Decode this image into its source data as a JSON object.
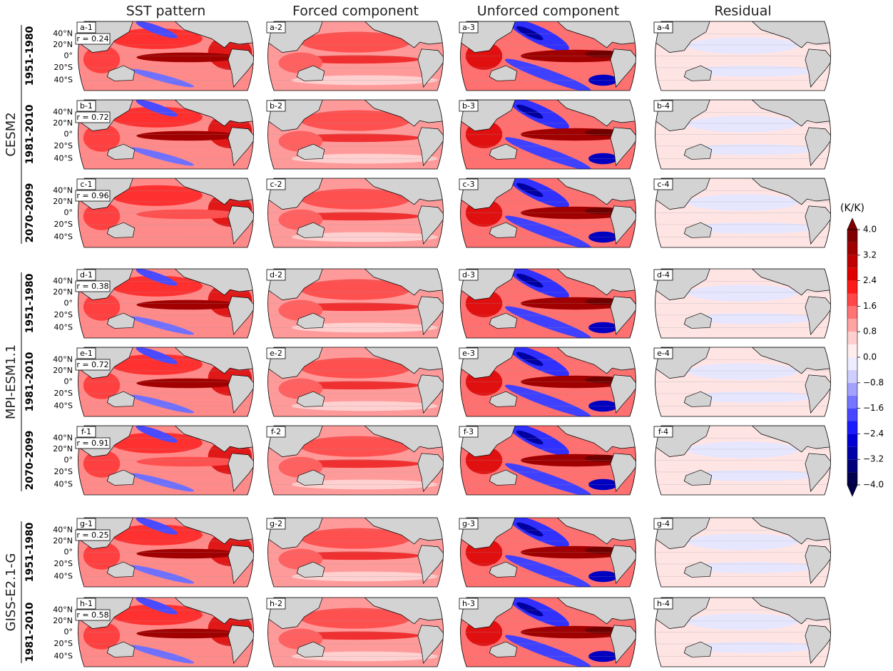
{
  "column_titles": [
    "SST pattern",
    "Forced component",
    "Unforced component",
    "Residual"
  ],
  "lat_labels": [
    "40°N",
    "20°N",
    "0°",
    "20°S",
    "40°S"
  ],
  "models": [
    {
      "name": "CESM2",
      "rows": [
        {
          "period": "1951-1980",
          "panels": [
            {
              "label": "a-1",
              "r": "r = 0.24"
            },
            {
              "label": "a-2"
            },
            {
              "label": "a-3"
            },
            {
              "label": "a-4"
            }
          ]
        },
        {
          "period": "1981-2010",
          "panels": [
            {
              "label": "b-1",
              "r": "r = 0.72"
            },
            {
              "label": "b-2"
            },
            {
              "label": "b-3"
            },
            {
              "label": "b-4"
            }
          ]
        },
        {
          "period": "2070-2099",
          "panels": [
            {
              "label": "c-1",
              "r": "r = 0.96"
            },
            {
              "label": "c-2"
            },
            {
              "label": "c-3"
            },
            {
              "label": "c-4"
            }
          ]
        }
      ]
    },
    {
      "name": "MPI-ESM1.1",
      "rows": [
        {
          "period": "1951-1980",
          "panels": [
            {
              "label": "d-1",
              "r": "r = 0.38"
            },
            {
              "label": "d-2"
            },
            {
              "label": "d-3"
            },
            {
              "label": "d-4"
            }
          ]
        },
        {
          "period": "1981-2010",
          "panels": [
            {
              "label": "e-1",
              "r": "r = 0.72"
            },
            {
              "label": "e-2"
            },
            {
              "label": "e-3"
            },
            {
              "label": "e-4"
            }
          ]
        },
        {
          "period": "2070-2099",
          "panels": [
            {
              "label": "f-1",
              "r": "r = 0.91"
            },
            {
              "label": "f-2"
            },
            {
              "label": "f-3"
            },
            {
              "label": "f-4"
            }
          ]
        }
      ]
    },
    {
      "name": "GISS-E2.1-G",
      "rows": [
        {
          "period": "1951-1980",
          "panels": [
            {
              "label": "g-1",
              "r": "r = 0.25"
            },
            {
              "label": "g-2"
            },
            {
              "label": "g-3"
            },
            {
              "label": "g-4"
            }
          ]
        },
        {
          "period": "1981-2010",
          "panels": [
            {
              "label": "h-1",
              "r": "r = 0.58"
            },
            {
              "label": "h-2"
            },
            {
              "label": "h-3"
            },
            {
              "label": "h-4"
            }
          ]
        }
      ]
    }
  ],
  "colorbar": {
    "label": "(K/K)",
    "lim": [
      -4,
      4
    ],
    "ticks": [
      {
        "value": 4,
        "label": "4.0"
      },
      3.2,
      2.4,
      1.6,
      0.8,
      {
        "value": 0,
        "label": "0.0"
      },
      {
        "value": -0.8,
        "label": "−0.8"
      },
      {
        "value": -1.6,
        "label": "−1.6"
      },
      {
        "value": -2.4,
        "label": "−2.4"
      },
      {
        "value": -3.2,
        "label": "−3.2"
      },
      {
        "value": -4,
        "label": "−4.0"
      }
    ],
    "colors": [
      "#00004d",
      "#00007a",
      "#0000a8",
      "#0000d6",
      "#1a1aff",
      "#4747ff",
      "#7575ff",
      "#a3a3ff",
      "#cfcfff",
      "#ededff",
      "#ffeded",
      "#ffcfcf",
      "#ffa3a3",
      "#ff7575",
      "#ff4747",
      "#ff1a1a",
      "#e00000",
      "#c00000",
      "#a00000",
      "#800000"
    ]
  }
}
